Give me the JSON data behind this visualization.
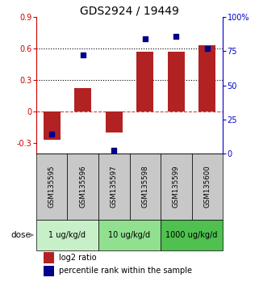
{
  "title": "GDS2924 / 19449",
  "samples": [
    "GSM135595",
    "GSM135596",
    "GSM135597",
    "GSM135598",
    "GSM135599",
    "GSM135600"
  ],
  "log2_ratio": [
    -0.27,
    0.22,
    -0.2,
    0.57,
    0.57,
    0.63
  ],
  "percentile_rank_pct": [
    14,
    72,
    2,
    84,
    86,
    77
  ],
  "ylim_left": [
    -0.4,
    0.9
  ],
  "ylim_right": [
    0,
    100
  ],
  "yticks_left": [
    -0.3,
    0.0,
    0.3,
    0.6,
    0.9
  ],
  "yticks_right": [
    0,
    25,
    50,
    75,
    100
  ],
  "ytick_labels_left": [
    "-0.3",
    "0",
    "0.3",
    "0.6",
    "0.9"
  ],
  "ytick_labels_right": [
    "0",
    "25",
    "50",
    "75",
    "100%"
  ],
  "hlines_dotted": [
    0.3,
    0.6
  ],
  "hline_dashed": 0.0,
  "bar_color": "#b22222",
  "dot_color": "#00008b",
  "bar_width": 0.55,
  "doses": [
    {
      "label": "1 ug/kg/d",
      "samples": [
        0,
        1
      ],
      "color": "#c8f0c8"
    },
    {
      "label": "10 ug/kg/d",
      "samples": [
        2,
        3
      ],
      "color": "#90e090"
    },
    {
      "label": "1000 ug/kg/d",
      "samples": [
        4,
        5
      ],
      "color": "#50c050"
    }
  ],
  "dose_label": "dose",
  "legend_bar_label": "log2 ratio",
  "legend_dot_label": "percentile rank within the sample",
  "sample_box_color": "#c8c8c8",
  "title_fontsize": 10,
  "tick_fontsize": 7,
  "sample_fontsize": 6.2
}
